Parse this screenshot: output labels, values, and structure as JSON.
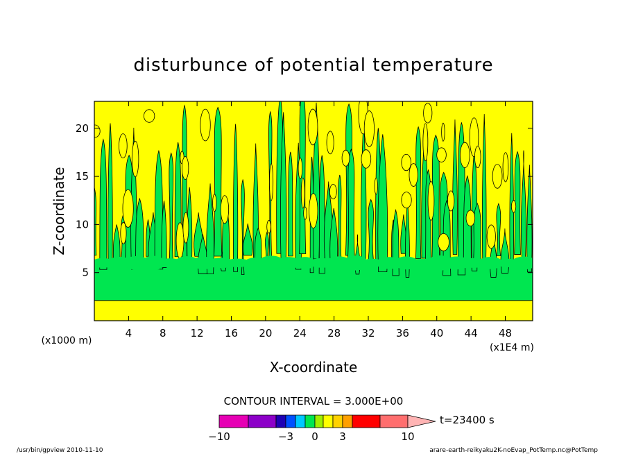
{
  "chart_data": {
    "type": "heatmap",
    "title": "disturbunce of potential temperature",
    "xlabel": "X-coordinate",
    "ylabel": "Z-coordinate",
    "x_unit_left": "(x1000 m)",
    "x_unit_right": "(x1E4 m)",
    "x_ticks": [
      "4",
      "8",
      "12",
      "16",
      "20",
      "24",
      "28",
      "32",
      "36",
      "40",
      "44",
      "48"
    ],
    "x_tick_values": [
      4,
      8,
      12,
      16,
      20,
      24,
      28,
      32,
      36,
      40,
      44,
      48
    ],
    "xlim": [
      0,
      51.2
    ],
    "y_ticks": [
      "5",
      "10",
      "15",
      "20"
    ],
    "y_tick_values": [
      5,
      10,
      15,
      20
    ],
    "ylim": [
      0,
      22.8
    ],
    "contour_interval_label": "CONTOUR INTERVAL = 3.000E+00",
    "time_label": "t=23400 s",
    "colorbar": {
      "tick_labels": [
        "−10",
        "−3",
        "0",
        "3",
        "10"
      ],
      "tick_values": [
        -10,
        -3,
        0,
        3,
        10
      ],
      "levels": [
        -10,
        -8,
        -6,
        -4,
        -3,
        -2,
        -1,
        0,
        1,
        2,
        3,
        4,
        6,
        8,
        10
      ],
      "colors": [
        "#e600b4",
        "#8c00c8",
        "#1e00b4",
        "#0050ff",
        "#00c8ff",
        "#00e650",
        "#a0f000",
        "#ffff00",
        "#ffd200",
        "#ffa000",
        "#ff7800",
        "#ff0000",
        "#ff6e6e",
        "#ffb4b4"
      ]
    },
    "field_colors": {
      "positive": "#ffff00",
      "negative": "#00e650",
      "contour": "#000000"
    },
    "lower_layer": {
      "z_top": 2.1,
      "value_sign": "positive"
    },
    "negative_band": {
      "z_range": [
        2.1,
        6.0
      ],
      "value_sign": "negative"
    }
  },
  "footer": {
    "left": "/usr/bin/gpview  2010-11-10",
    "right": "arare-earth-reikyaku2K-noEvap_PotTemp.nc@PotTemp"
  }
}
